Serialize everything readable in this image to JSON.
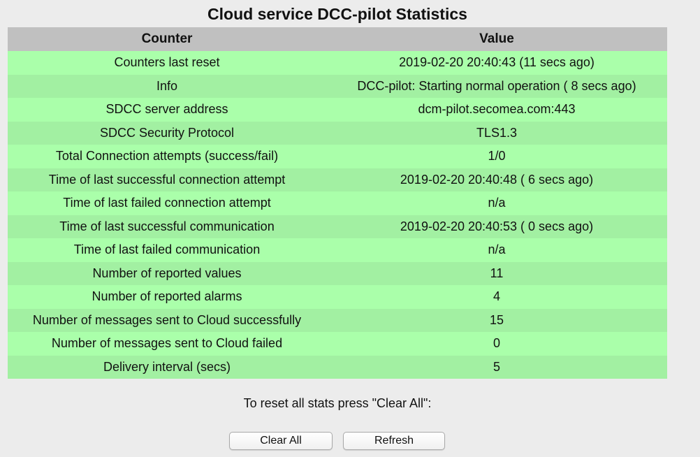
{
  "page_title": "Cloud service DCC-pilot Statistics",
  "table": {
    "headers": {
      "counter": "Counter",
      "value": "Value"
    },
    "rows": [
      {
        "counter": "Counters last reset",
        "value": "2019-02-20 20:40:43 (11 secs ago)"
      },
      {
        "counter": "Info",
        "value": "DCC-pilot: Starting normal operation ( 8 secs ago)"
      },
      {
        "counter": "SDCC server address",
        "value": "dcm-pilot.secomea.com:443"
      },
      {
        "counter": "SDCC Security Protocol",
        "value": "TLS1.3"
      },
      {
        "counter": "Total Connection attempts (success/fail)",
        "value": "1/0"
      },
      {
        "counter": "Time of last successful connection attempt",
        "value": "2019-02-20 20:40:48 ( 6 secs ago)"
      },
      {
        "counter": "Time of last failed connection attempt",
        "value": "n/a"
      },
      {
        "counter": "Time of last successful communication",
        "value": "2019-02-20 20:40:53 ( 0 secs ago)"
      },
      {
        "counter": "Time of last failed communication",
        "value": "n/a"
      },
      {
        "counter": "Number of reported values",
        "value": "11"
      },
      {
        "counter": "Number of reported alarms",
        "value": "4"
      },
      {
        "counter": "Number of messages sent to Cloud successfully",
        "value": "15"
      },
      {
        "counter": "Number of messages sent to Cloud failed",
        "value": "0"
      },
      {
        "counter": "Delivery interval (secs)",
        "value": "5"
      }
    ]
  },
  "reset_note": "To reset all stats press \"Clear All\":",
  "buttons": {
    "clear_all": "Clear All",
    "refresh": "Refresh"
  },
  "colors": {
    "header_bg": "#c0c0c0",
    "row_bg_light": "#aaffaa",
    "row_bg_dark": "#a2f0a2",
    "page_bg": "#ececec"
  }
}
